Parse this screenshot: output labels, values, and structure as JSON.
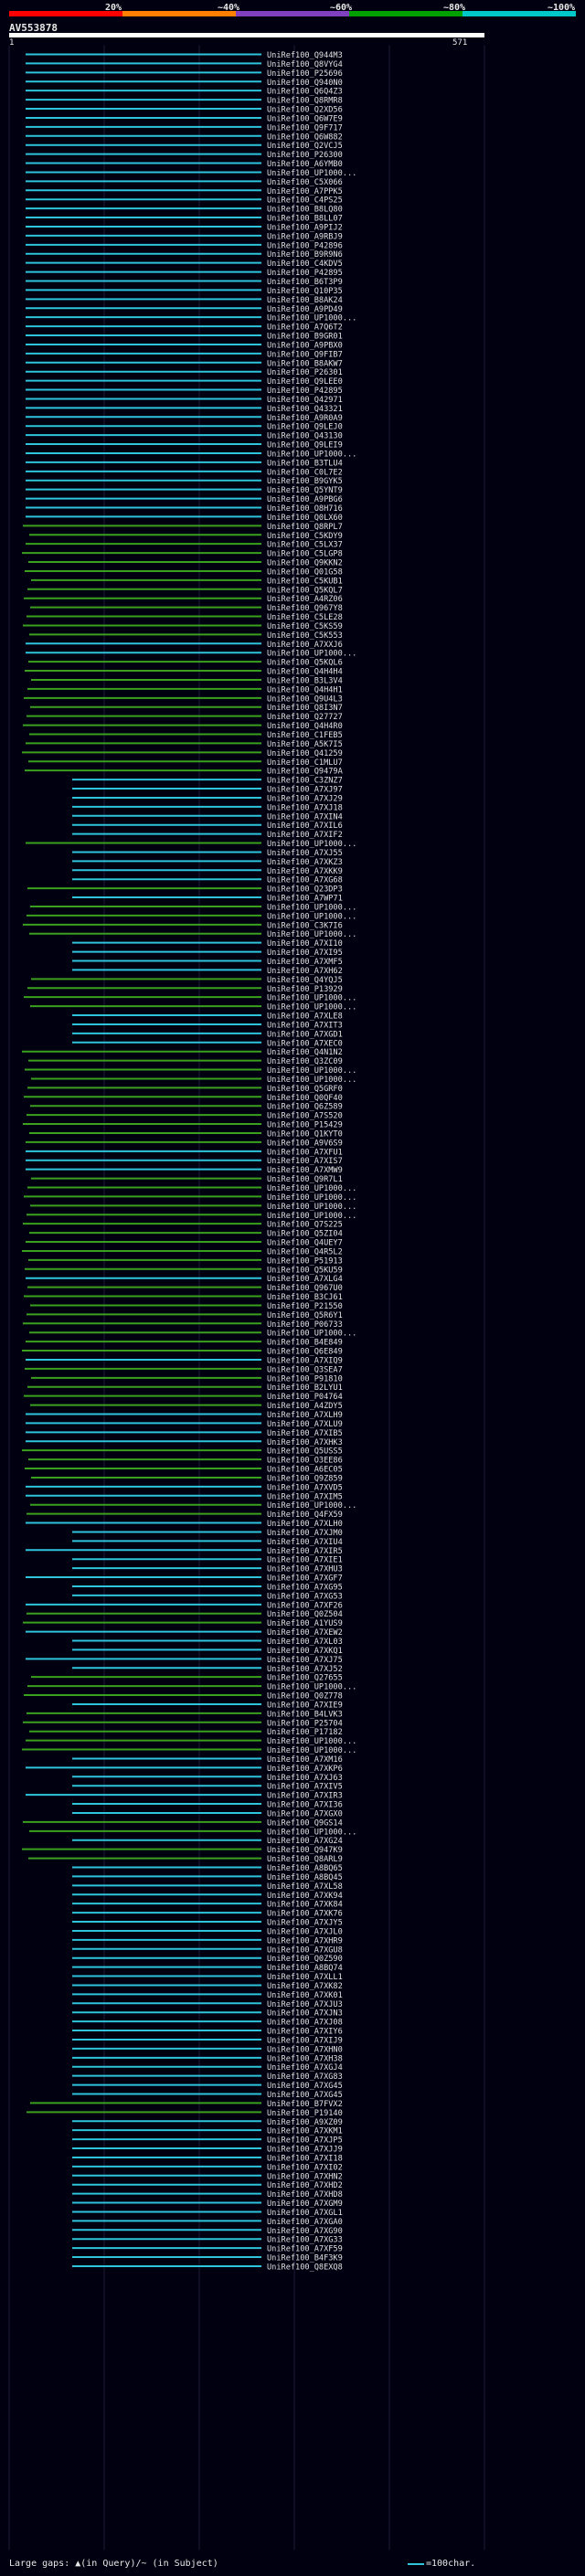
{
  "scale": {
    "labels": [
      "20%",
      "~40%",
      "~60%",
      "~80%",
      "~100%"
    ],
    "colors": [
      "#ff0000",
      "#ff8000",
      "#8040c0",
      "#00a000",
      "#00c8c8"
    ]
  },
  "query": {
    "id": "AV553878",
    "start": "1",
    "end": "571"
  },
  "legend": {
    "gaps_text": "Large gaps: ▲(in Query)/~ (in Subject)",
    "scale_text": "=100char."
  },
  "hit_colors": {
    "high": "#2ec4dc",
    "mid": "#3aa01e"
  },
  "hits": [
    {
      "label": "UniRef100_Q944M3",
      "class": "high"
    },
    {
      "label": "UniRef100_Q8VYG4",
      "class": "high"
    },
    {
      "label": "UniRef100_P25696",
      "class": "high"
    },
    {
      "label": "UniRef100_Q940N0",
      "class": "high"
    },
    {
      "label": "UniRef100_Q6Q4Z3",
      "class": "high"
    },
    {
      "label": "UniRef100_Q8RMR8",
      "class": "high"
    },
    {
      "label": "UniRef100_Q2XD56",
      "class": "high"
    },
    {
      "label": "UniRef100_Q6W7E9",
      "class": "high"
    },
    {
      "label": "UniRef100_Q9F717",
      "class": "high"
    },
    {
      "label": "UniRef100_Q6W882",
      "class": "high"
    },
    {
      "label": "UniRef100_Q2VCJ5",
      "class": "high"
    },
    {
      "label": "UniRef100_P26300",
      "class": "high"
    },
    {
      "label": "UniRef100_A6YMB0",
      "class": "high"
    },
    {
      "label": "UniRef100_UP1000...",
      "class": "high"
    },
    {
      "label": "UniRef100_C5X066",
      "class": "high"
    },
    {
      "label": "UniRef100_A7PPK5",
      "class": "high"
    },
    {
      "label": "UniRef100_C4PS25",
      "class": "high"
    },
    {
      "label": "UniRef100_B8LQ80",
      "class": "high"
    },
    {
      "label": "UniRef100_B8LL07",
      "class": "high"
    },
    {
      "label": "UniRef100_A9PIJ2",
      "class": "high"
    },
    {
      "label": "UniRef100_A9RBJ9",
      "class": "high"
    },
    {
      "label": "UniRef100_P42896",
      "class": "high"
    },
    {
      "label": "UniRef100_B9R9N6",
      "class": "high"
    },
    {
      "label": "UniRef100_C4KDV5",
      "class": "high"
    },
    {
      "label": "UniRef100_P42895",
      "class": "high"
    },
    {
      "label": "UniRef100_B6T3P9",
      "class": "high"
    },
    {
      "label": "UniRef100_Q10P35",
      "class": "high"
    },
    {
      "label": "UniRef100_B8AK24",
      "class": "high"
    },
    {
      "label": "UniRef100_A9PD49",
      "class": "high"
    },
    {
      "label": "UniRef100_UP1000...",
      "class": "high"
    },
    {
      "label": "UniRef100_A7Q6T2",
      "class": "high"
    },
    {
      "label": "UniRef100_B9GR01",
      "class": "high"
    },
    {
      "label": "UniRef100_A9PBX0",
      "class": "high"
    },
    {
      "label": "UniRef100_Q9FIB7",
      "class": "high"
    },
    {
      "label": "UniRef100_B8AKW7",
      "class": "high"
    },
    {
      "label": "UniRef100_P26301",
      "class": "high"
    },
    {
      "label": "UniRef100_Q9LEE0",
      "class": "high"
    },
    {
      "label": "UniRef100_P42895",
      "class": "high"
    },
    {
      "label": "UniRef100_Q42971",
      "class": "high"
    },
    {
      "label": "UniRef100_Q43321",
      "class": "high"
    },
    {
      "label": "UniRef100_A9R0A9",
      "class": "high"
    },
    {
      "label": "UniRef100_Q9LEJ0",
      "class": "high"
    },
    {
      "label": "UniRef100_Q43130",
      "class": "high"
    },
    {
      "label": "UniRef100_Q9LEI9",
      "class": "high"
    },
    {
      "label": "UniRef100_UP1000...",
      "class": "high"
    },
    {
      "label": "UniRef100_B3TLU4",
      "class": "high"
    },
    {
      "label": "UniRef100_C0L7E2",
      "class": "high"
    },
    {
      "label": "UniRef100_B9GYK5",
      "class": "high"
    },
    {
      "label": "UniRef100_Q5YNT9",
      "class": "high"
    },
    {
      "label": "UniRef100_A9PBG6",
      "class": "high"
    },
    {
      "label": "UniRef100_O8H716",
      "class": "high"
    },
    {
      "label": "UniRef100_Q0LX60",
      "class": "high"
    },
    {
      "label": "UniRef100_Q8RPL7",
      "class": "mid"
    },
    {
      "label": "UniRef100_C5KDY9",
      "class": "mid"
    },
    {
      "label": "UniRef100_C5LX37",
      "class": "mid"
    },
    {
      "label": "UniRef100_C5LGP8",
      "class": "mid"
    },
    {
      "label": "UniRef100_Q9KKN2",
      "class": "mid"
    },
    {
      "label": "UniRef100_Q01G58",
      "class": "mid"
    },
    {
      "label": "UniRef100_C5KUB1",
      "class": "mid"
    },
    {
      "label": "UniRef100_Q5KQL7",
      "class": "mid"
    },
    {
      "label": "UniRef100_A4RZ06",
      "class": "mid"
    },
    {
      "label": "UniRef100_Q967Y8",
      "class": "mid"
    },
    {
      "label": "UniRef100_C5LE28",
      "class": "mid"
    },
    {
      "label": "UniRef100_C5KS59",
      "class": "mid"
    },
    {
      "label": "UniRef100_C5K553",
      "class": "mid"
    },
    {
      "label": "UniRef100_A7XXJ6",
      "class": "high"
    },
    {
      "label": "UniRef100_UP1000...",
      "class": "high"
    },
    {
      "label": "UniRef100_Q5KQL6",
      "class": "mid"
    },
    {
      "label": "UniRef100_Q4H4H4",
      "class": "mid"
    },
    {
      "label": "UniRef100_B3L3V4",
      "class": "mid"
    },
    {
      "label": "UniRef100_Q4H4H1",
      "class": "mid"
    },
    {
      "label": "UniRef100_Q9U4L3",
      "class": "mid"
    },
    {
      "label": "UniRef100_Q8I3N7",
      "class": "mid"
    },
    {
      "label": "UniRef100_Q27727",
      "class": "mid"
    },
    {
      "label": "UniRef100_Q4H4R0",
      "class": "mid"
    },
    {
      "label": "UniRef100_C1FEB5",
      "class": "mid"
    },
    {
      "label": "UniRef100_A5K7I5",
      "class": "mid"
    },
    {
      "label": "UniRef100_Q41259",
      "class": "mid"
    },
    {
      "label": "UniRef100_C1MLU7",
      "class": "mid"
    },
    {
      "label": "UniRef100_Q9479A",
      "class": "mid"
    },
    {
      "label": "UniRef100_C3ZNZ7",
      "class": "high"
    },
    {
      "label": "UniRef100_A7XJ97",
      "class": "high"
    },
    {
      "label": "UniRef100_A7XJ29",
      "class": "high"
    },
    {
      "label": "UniRef100_A7XJ18",
      "class": "high"
    },
    {
      "label": "UniRef100_A7XIN4",
      "class": "high"
    },
    {
      "label": "UniRef100_A7XIL6",
      "class": "high"
    },
    {
      "label": "UniRef100_A7XIF2",
      "class": "high"
    },
    {
      "label": "UniRef100_UP1000...",
      "class": "mid"
    },
    {
      "label": "UniRef100_A7XJ55",
      "class": "high"
    },
    {
      "label": "UniRef100_A7XKZ3",
      "class": "high"
    },
    {
      "label": "UniRef100_A7XKK9",
      "class": "high"
    },
    {
      "label": "UniRef100_A7XG68",
      "class": "high"
    },
    {
      "label": "UniRef100_Q23DP3",
      "class": "mid"
    },
    {
      "label": "UniRef100_A7WP71",
      "class": "high"
    },
    {
      "label": "UniRef100_UP1000...",
      "class": "mid"
    },
    {
      "label": "UniRef100_UP1000...",
      "class": "mid"
    },
    {
      "label": "UniRef100_C3K7I6",
      "class": "mid"
    },
    {
      "label": "UniRef100_UP1000...",
      "class": "mid"
    },
    {
      "label": "UniRef100_A7XI10",
      "class": "high"
    },
    {
      "label": "UniRef100_A7XI95",
      "class": "high"
    },
    {
      "label": "UniRef100_A7XMF5",
      "class": "high"
    },
    {
      "label": "UniRef100_A7XH62",
      "class": "high"
    },
    {
      "label": "UniRef100_Q4YQJ5",
      "class": "mid"
    },
    {
      "label": "UniRef100_P13929",
      "class": "mid"
    },
    {
      "label": "UniRef100_UP1000...",
      "class": "mid"
    },
    {
      "label": "UniRef100_UP1000...",
      "class": "mid"
    },
    {
      "label": "UniRef100_A7XLE8",
      "class": "high"
    },
    {
      "label": "UniRef100_A7XIT3",
      "class": "high"
    },
    {
      "label": "UniRef100_A7XGD1",
      "class": "high"
    },
    {
      "label": "UniRef100_A7XEC0",
      "class": "high"
    },
    {
      "label": "UniRef100_Q4N1N2",
      "class": "mid"
    },
    {
      "label": "UniRef100_Q3ZC09",
      "class": "mid"
    },
    {
      "label": "UniRef100_UP1000...",
      "class": "mid"
    },
    {
      "label": "UniRef100_UP1000...",
      "class": "mid"
    },
    {
      "label": "UniRef100_Q5GRF0",
      "class": "mid"
    },
    {
      "label": "UniRef100_Q0QF40",
      "class": "mid"
    },
    {
      "label": "UniRef100_Q6Z589",
      "class": "mid"
    },
    {
      "label": "UniRef100_A7S520",
      "class": "mid"
    },
    {
      "label": "UniRef100_P15429",
      "class": "mid"
    },
    {
      "label": "UniRef100_Q1KYT0",
      "class": "mid"
    },
    {
      "label": "UniRef100_A9V6S9",
      "class": "mid"
    },
    {
      "label": "UniRef100_A7XFU1",
      "class": "high"
    },
    {
      "label": "UniRef100_A7XIS7",
      "class": "high"
    },
    {
      "label": "UniRef100_A7XMW9",
      "class": "high"
    },
    {
      "label": "UniRef100_Q9R7L1",
      "class": "mid"
    },
    {
      "label": "UniRef100_UP1000...",
      "class": "mid"
    },
    {
      "label": "UniRef100_UP1000...",
      "class": "mid"
    },
    {
      "label": "UniRef100_UP1000...",
      "class": "mid"
    },
    {
      "label": "UniRef100_UP1000...",
      "class": "mid"
    },
    {
      "label": "UniRef100_Q7S225",
      "class": "mid"
    },
    {
      "label": "UniRef100_Q5ZI04",
      "class": "mid"
    },
    {
      "label": "UniRef100_Q4UEY7",
      "class": "mid"
    },
    {
      "label": "UniRef100_Q4R5L2",
      "class": "mid"
    },
    {
      "label": "UniRef100_P51913",
      "class": "mid"
    },
    {
      "label": "UniRef100_Q5KU59",
      "class": "mid"
    },
    {
      "label": "UniRef100_A7XLG4",
      "class": "high"
    },
    {
      "label": "UniRef100_Q967U0",
      "class": "mid"
    },
    {
      "label": "UniRef100_B3CJ61",
      "class": "mid"
    },
    {
      "label": "UniRef100_P21550",
      "class": "mid"
    },
    {
      "label": "UniRef100_Q5R6Y1",
      "class": "mid"
    },
    {
      "label": "UniRef100_P06733",
      "class": "mid"
    },
    {
      "label": "UniRef100_UP1000...",
      "class": "mid"
    },
    {
      "label": "UniRef100_B4E849",
      "class": "mid"
    },
    {
      "label": "UniRef100_Q6E849",
      "class": "mid"
    },
    {
      "label": "UniRef100_A7XIQ9",
      "class": "high"
    },
    {
      "label": "UniRef100_Q3SEA7",
      "class": "mid"
    },
    {
      "label": "UniRef100_P91810",
      "class": "mid"
    },
    {
      "label": "UniRef100_B2LYU1",
      "class": "mid"
    },
    {
      "label": "UniRef100_P04764",
      "class": "mid"
    },
    {
      "label": "UniRef100_A4ZDY5",
      "class": "mid"
    },
    {
      "label": "UniRef100_A7XLH9",
      "class": "high"
    },
    {
      "label": "UniRef100_A7XLU9",
      "class": "high"
    },
    {
      "label": "UniRef100_A7XIB5",
      "class": "high"
    },
    {
      "label": "UniRef100_A7XHK3",
      "class": "high"
    },
    {
      "label": "UniRef100_Q5USS5",
      "class": "mid"
    },
    {
      "label": "UniRef100_O3EE86",
      "class": "mid"
    },
    {
      "label": "UniRef100_A6EC05",
      "class": "mid"
    },
    {
      "label": "UniRef100_Q9Z859",
      "class": "mid"
    },
    {
      "label": "UniRef100_A7XVD5",
      "class": "high"
    },
    {
      "label": "UniRef100_A7XIM5",
      "class": "high"
    },
    {
      "label": "UniRef100_UP1000...",
      "class": "mid"
    },
    {
      "label": "UniRef100_Q4FX59",
      "class": "mid"
    },
    {
      "label": "UniRef100_A7XLH0",
      "class": "high"
    },
    {
      "label": "UniRef100_A7XJM0",
      "class": "high"
    },
    {
      "label": "UniRef100_A7XIU4",
      "class": "high"
    },
    {
      "label": "UniRef100_A7XIR5",
      "class": "high"
    },
    {
      "label": "UniRef100_A7XIE1",
      "class": "high"
    },
    {
      "label": "UniRef100_A7XHU3",
      "class": "high"
    },
    {
      "label": "UniRef100_A7XGF7",
      "class": "high"
    },
    {
      "label": "UniRef100_A7XG95",
      "class": "high"
    },
    {
      "label": "UniRef100_A7XG53",
      "class": "high"
    },
    {
      "label": "UniRef100_A7XF26",
      "class": "high"
    },
    {
      "label": "UniRef100_Q0Z504",
      "class": "mid"
    },
    {
      "label": "UniRef100_A1YUS9",
      "class": "mid"
    },
    {
      "label": "UniRef100_A7XEW2",
      "class": "high"
    },
    {
      "label": "UniRef100_A7XL03",
      "class": "high"
    },
    {
      "label": "UniRef100_A7XKQ1",
      "class": "high"
    },
    {
      "label": "UniRef100_A7XJ75",
      "class": "high"
    },
    {
      "label": "UniRef100_A7XJ52",
      "class": "high"
    },
    {
      "label": "UniRef100_Q27655",
      "class": "mid"
    },
    {
      "label": "UniRef100_UP1000...",
      "class": "mid"
    },
    {
      "label": "UniRef100_Q0Z778",
      "class": "mid"
    },
    {
      "label": "UniRef100_A7XIE9",
      "class": "high"
    },
    {
      "label": "UniRef100_B4LVK3",
      "class": "mid"
    },
    {
      "label": "UniRef100_P25704",
      "class": "mid"
    },
    {
      "label": "UniRef100_P17182",
      "class": "mid"
    },
    {
      "label": "UniRef100_UP1000...",
      "class": "mid"
    },
    {
      "label": "UniRef100_UP1000...",
      "class": "mid"
    },
    {
      "label": "UniRef100_A7XM16",
      "class": "high"
    },
    {
      "label": "UniRef100_A7XKP6",
      "class": "high"
    },
    {
      "label": "UniRef100_A7XJ63",
      "class": "high"
    },
    {
      "label": "UniRef100_A7XIV5",
      "class": "high"
    },
    {
      "label": "UniRef100_A7XIR3",
      "class": "high"
    },
    {
      "label": "UniRef100_A7XI36",
      "class": "high"
    },
    {
      "label": "UniRef100_A7XGX0",
      "class": "high"
    },
    {
      "label": "UniRef100_Q9GS14",
      "class": "mid"
    },
    {
      "label": "UniRef100_UP1000...",
      "class": "mid"
    },
    {
      "label": "UniRef100_A7XG24",
      "class": "high"
    },
    {
      "label": "UniRef100_Q947K9",
      "class": "mid"
    },
    {
      "label": "UniRef100_Q8ARL9",
      "class": "mid"
    },
    {
      "label": "UniRef100_A8BQ65",
      "class": "high"
    },
    {
      "label": "UniRef100_A8BQ45",
      "class": "high"
    },
    {
      "label": "UniRef100_A7XL58",
      "class": "high"
    },
    {
      "label": "UniRef100_A7XK94",
      "class": "high"
    },
    {
      "label": "UniRef100_A7XK84",
      "class": "high"
    },
    {
      "label": "UniRef100_A7XK76",
      "class": "high"
    },
    {
      "label": "UniRef100_A7XJY5",
      "class": "high"
    },
    {
      "label": "UniRef100_A7XJL0",
      "class": "high"
    },
    {
      "label": "UniRef100_A7XHR9",
      "class": "high"
    },
    {
      "label": "UniRef100_A7XGU8",
      "class": "high"
    },
    {
      "label": "UniRef100_Q0Z590",
      "class": "high"
    },
    {
      "label": "UniRef100_A8BQ74",
      "class": "high"
    },
    {
      "label": "UniRef100_A7XLL1",
      "class": "high"
    },
    {
      "label": "UniRef100_A7XK82",
      "class": "high"
    },
    {
      "label": "UniRef100_A7XK01",
      "class": "high"
    },
    {
      "label": "UniRef100_A7XJU3",
      "class": "high"
    },
    {
      "label": "UniRef100_A7XJN3",
      "class": "high"
    },
    {
      "label": "UniRef100_A7XJ08",
      "class": "high"
    },
    {
      "label": "UniRef100_A7XIY6",
      "class": "high"
    },
    {
      "label": "UniRef100_A7XIJ9",
      "class": "high"
    },
    {
      "label": "UniRef100_A7XHN0",
      "class": "high"
    },
    {
      "label": "UniRef100_A7XH38",
      "class": "high"
    },
    {
      "label": "UniRef100_A7XGJ4",
      "class": "high"
    },
    {
      "label": "UniRef100_A7XG83",
      "class": "high"
    },
    {
      "label": "UniRef100_A7XG45",
      "class": "high"
    },
    {
      "label": "UniRef100_A7XG45",
      "class": "high"
    },
    {
      "label": "UniRef100_B7FVX2",
      "class": "mid"
    },
    {
      "label": "UniRef100_P19140",
      "class": "mid"
    },
    {
      "label": "UniRef100_A9XZ09",
      "class": "high"
    },
    {
      "label": "UniRef100_A7XKM1",
      "class": "high"
    },
    {
      "label": "UniRef100_A7XJP5",
      "class": "high"
    },
    {
      "label": "UniRef100_A7XJJ9",
      "class": "high"
    },
    {
      "label": "UniRef100_A7XI18",
      "class": "high"
    },
    {
      "label": "UniRef100_A7XI02",
      "class": "high"
    },
    {
      "label": "UniRef100_A7XHN2",
      "class": "high"
    },
    {
      "label": "UniRef100_A7XHD2",
      "class": "high"
    },
    {
      "label": "UniRef100_A7XHD8",
      "class": "high"
    },
    {
      "label": "UniRef100_A7XGM9",
      "class": "high"
    },
    {
      "label": "UniRef100_A7XGL1",
      "class": "high"
    },
    {
      "label": "UniRef100_A7XGA0",
      "class": "high"
    },
    {
      "label": "UniRef100_A7XG90",
      "class": "high"
    },
    {
      "label": "UniRef100_A7XG33",
      "class": "high"
    },
    {
      "label": "UniRef100_A7XF59",
      "class": "high"
    },
    {
      "label": "UniRef100_B4F3K9",
      "class": "high"
    },
    {
      "label": "UniRef100_Q8EXQ8",
      "class": "high"
    }
  ]
}
